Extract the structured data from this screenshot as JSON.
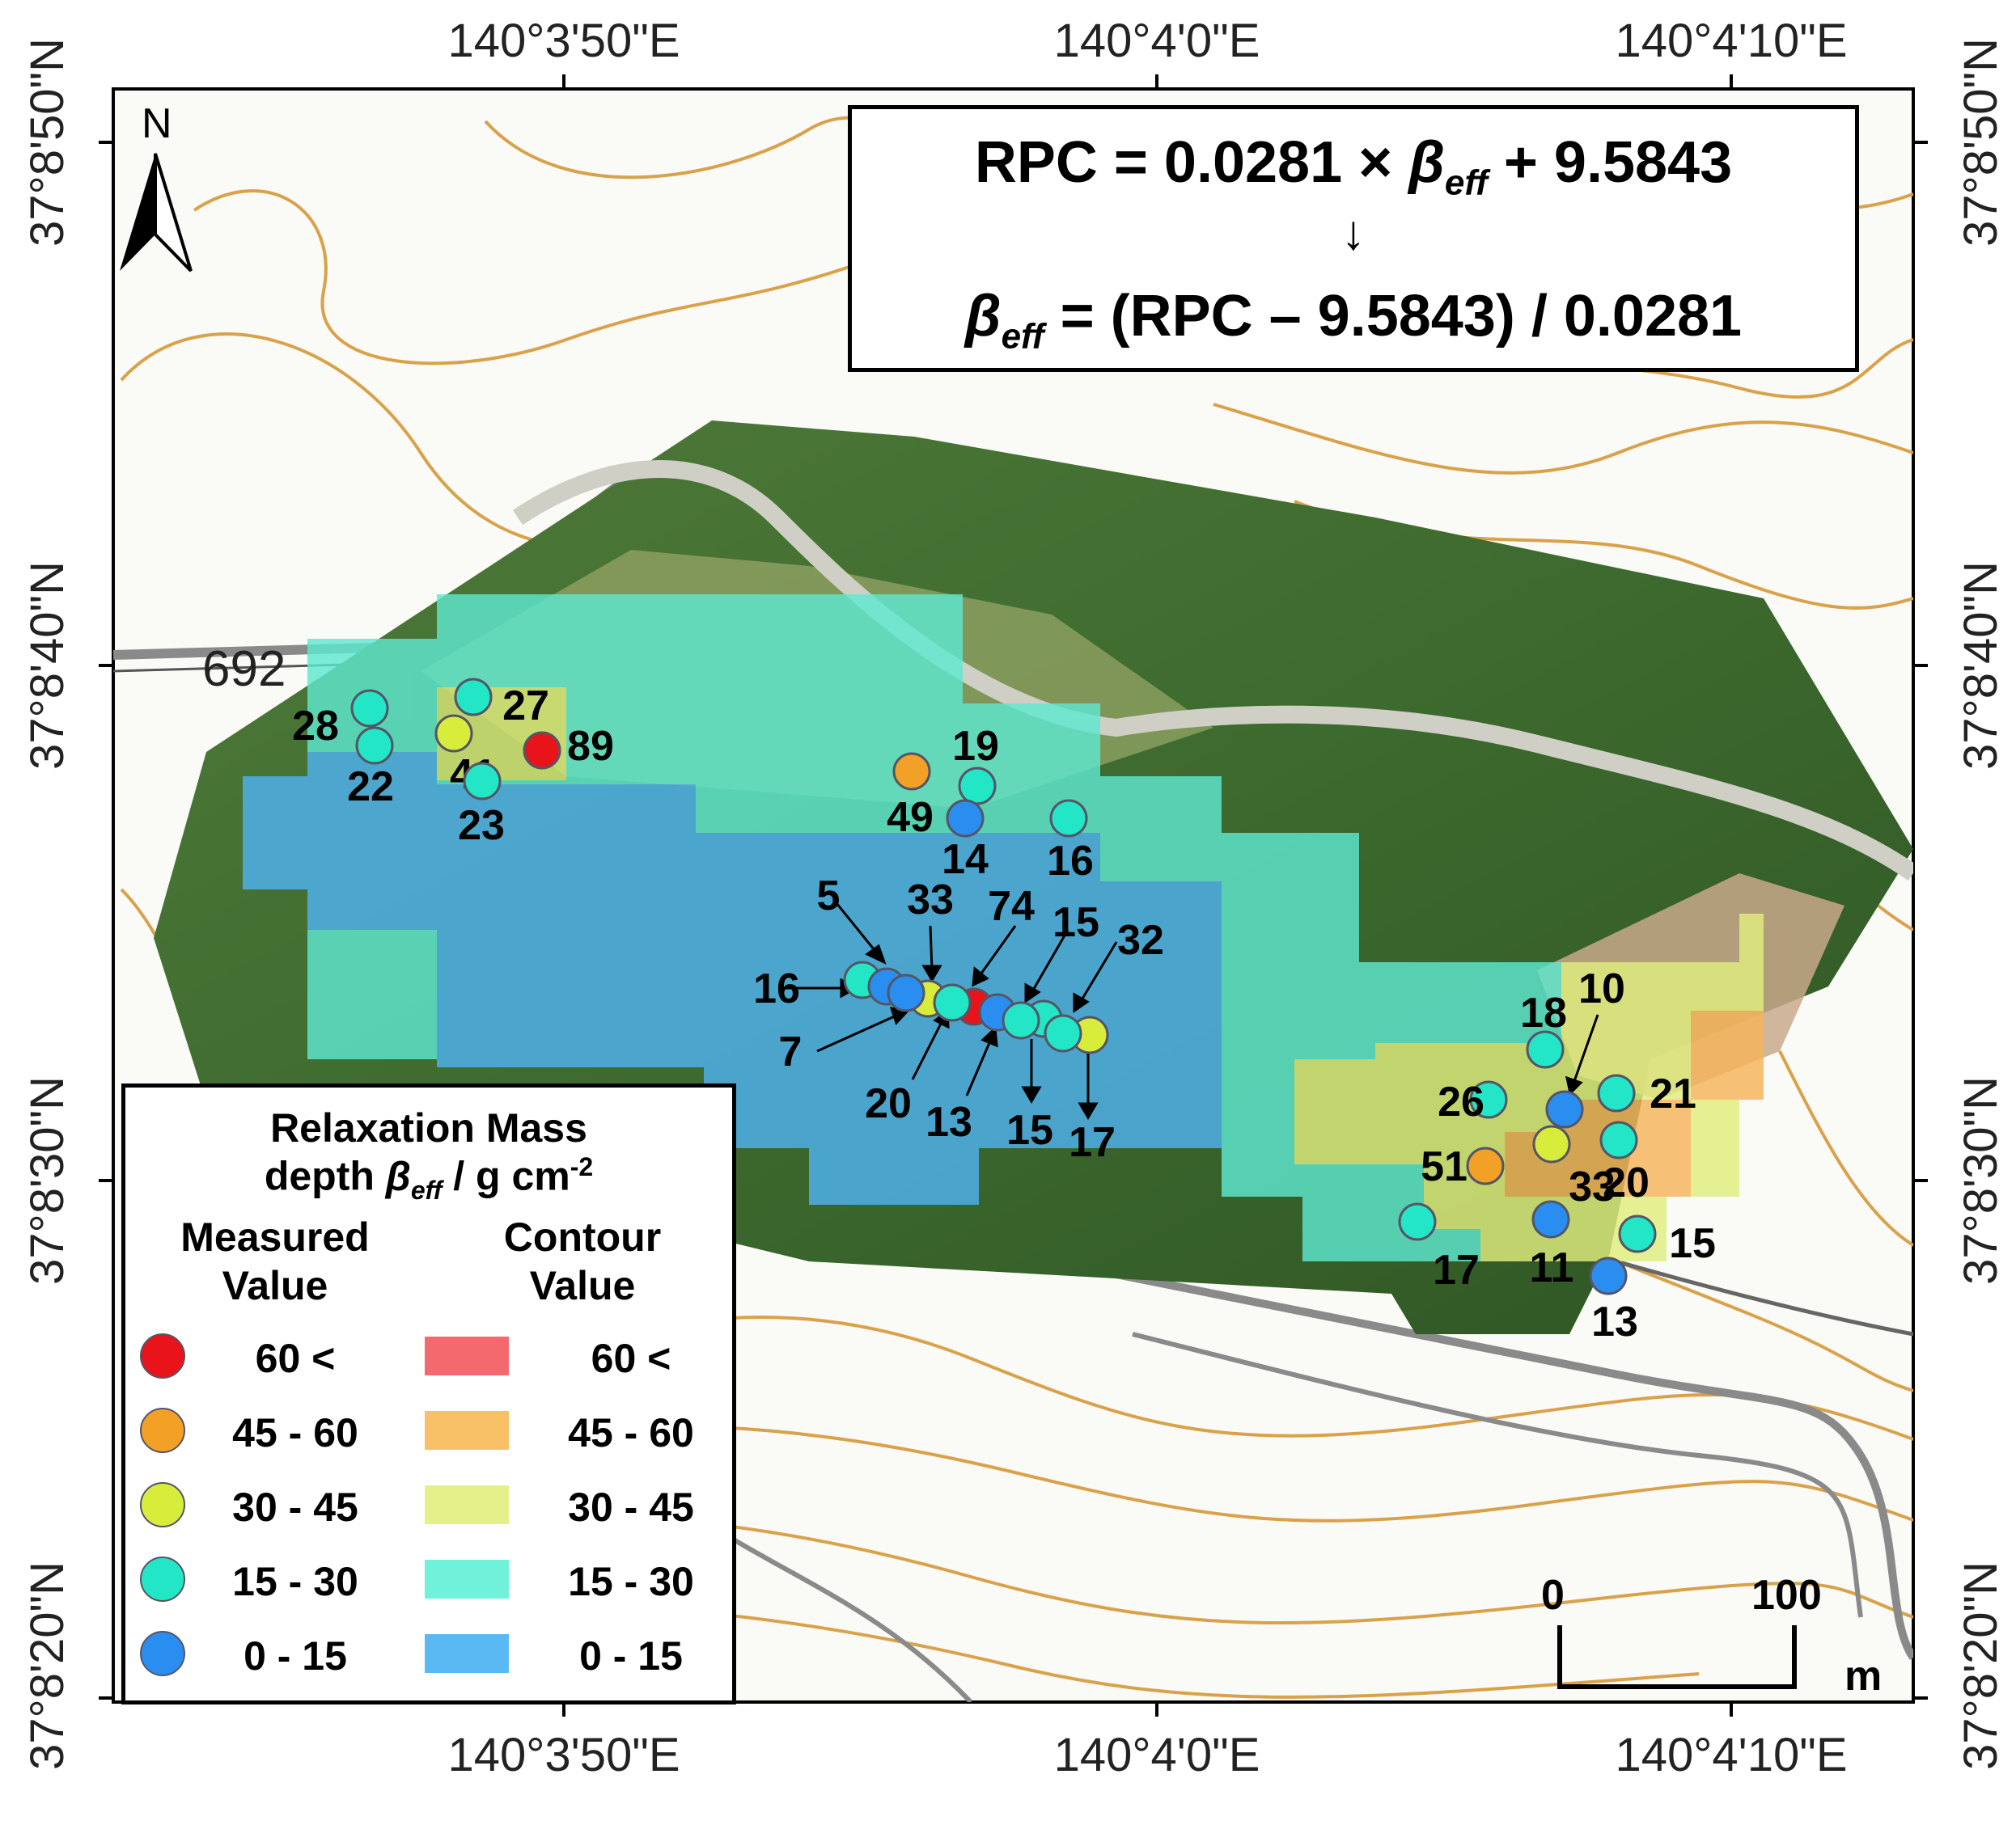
{
  "equation": {
    "line1_prefix": "RPC = 0.0281 × ",
    "line1_beta": "β",
    "line1_beta_sub": "eff",
    "line1_suffix": " + 9.5843",
    "arrow": "↓",
    "line2_beta": "β",
    "line2_beta_sub": "eff",
    "line2_suffix": " = (RPC – 9.5843) / 0.0281"
  },
  "north_arrow_label": "N",
  "road_number": "692",
  "axes": {
    "top_ticks": [
      "140°3'50\"E",
      "140°4'0\"E",
      "140°4'10\"E"
    ],
    "bottom_ticks": [
      "140°3'50\"E",
      "140°4'0\"E",
      "140°4'10\"E"
    ],
    "left_ticks": [
      "37°8'50\"N",
      "37°8'40\"N",
      "37°8'30\"N",
      "37°8'20\"N"
    ],
    "right_ticks": [
      "37°8'50\"N",
      "37°8'40\"N",
      "37°8'30\"N",
      "37°8'20\"N"
    ]
  },
  "scale_bar": {
    "start": "0",
    "end": "100",
    "unit": "m"
  },
  "legend": {
    "title": "Relaxation Mass",
    "subtitle_prefix": "depth ",
    "subtitle_beta": "β",
    "subtitle_beta_sub": "eff",
    "subtitle_unit": " / g cm",
    "subtitle_exp": "-2",
    "col_measured": "Measured Value",
    "col_contour": "Contour Value",
    "classes": [
      {
        "label": "60 <",
        "point_color": "#e8141a",
        "contour_color": "#f4696d"
      },
      {
        "label": "45 - 60",
        "point_color": "#f3a126",
        "contour_color": "#f8c067"
      },
      {
        "label": "30 - 45",
        "point_color": "#d8ec3c",
        "contour_color": "#e5f08a"
      },
      {
        "label": "15 - 30",
        "point_color": "#22e6c6",
        "contour_color": "#70f2da"
      },
      {
        "label": "0 - 15",
        "point_color": "#2a8ef0",
        "contour_color": "#5ab9f2"
      }
    ]
  },
  "measurements": [
    {
      "value": "28",
      "class": 3
    },
    {
      "value": "22",
      "class": 3
    },
    {
      "value": "27",
      "class": 3
    },
    {
      "value": "41",
      "class": 2
    },
    {
      "value": "89",
      "class": 0
    },
    {
      "value": "23",
      "class": 3
    },
    {
      "value": "49",
      "class": 1
    },
    {
      "value": "19",
      "class": 3
    },
    {
      "value": "14",
      "class": 4
    },
    {
      "value": "16",
      "class": 3
    },
    {
      "value": "16",
      "class": 3
    },
    {
      "value": "5",
      "class": 4
    },
    {
      "value": "33",
      "class": 2
    },
    {
      "value": "74",
      "class": 0
    },
    {
      "value": "15",
      "class": 3
    },
    {
      "value": "32",
      "class": 2
    },
    {
      "value": "7",
      "class": 4
    },
    {
      "value": "20",
      "class": 3
    },
    {
      "value": "13",
      "class": 4
    },
    {
      "value": "15",
      "class": 3
    },
    {
      "value": "17",
      "class": 3
    },
    {
      "value": "18",
      "class": 3
    },
    {
      "value": "10",
      "class": 4
    },
    {
      "value": "26",
      "class": 3
    },
    {
      "value": "21",
      "class": 3
    },
    {
      "value": "51",
      "class": 1
    },
    {
      "value": "33",
      "class": 2
    },
    {
      "value": "20",
      "class": 3
    },
    {
      "value": "17",
      "class": 3
    },
    {
      "value": "11",
      "class": 4
    },
    {
      "value": "15",
      "class": 3
    },
    {
      "value": "13",
      "class": 4
    }
  ]
}
